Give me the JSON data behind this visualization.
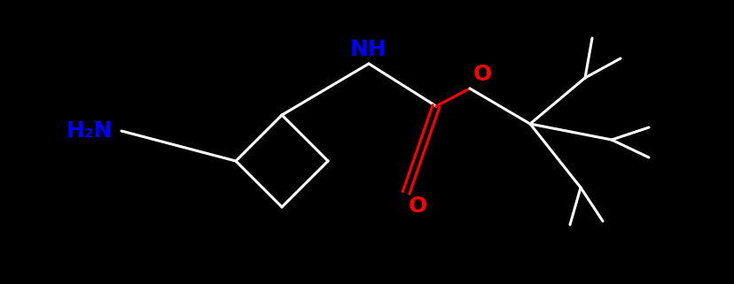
{
  "bg_color": "#000000",
  "bond_color": "#ffffff",
  "N_color": "#0000ff",
  "O_color": "#ff0000",
  "line_width": 2.2,
  "font_size": 16,
  "fig_width": 8.29,
  "fig_height": 3.21,
  "dpi": 100,
  "H2N_text": "H₂N",
  "NH_text": "NH",
  "O_text": "O"
}
